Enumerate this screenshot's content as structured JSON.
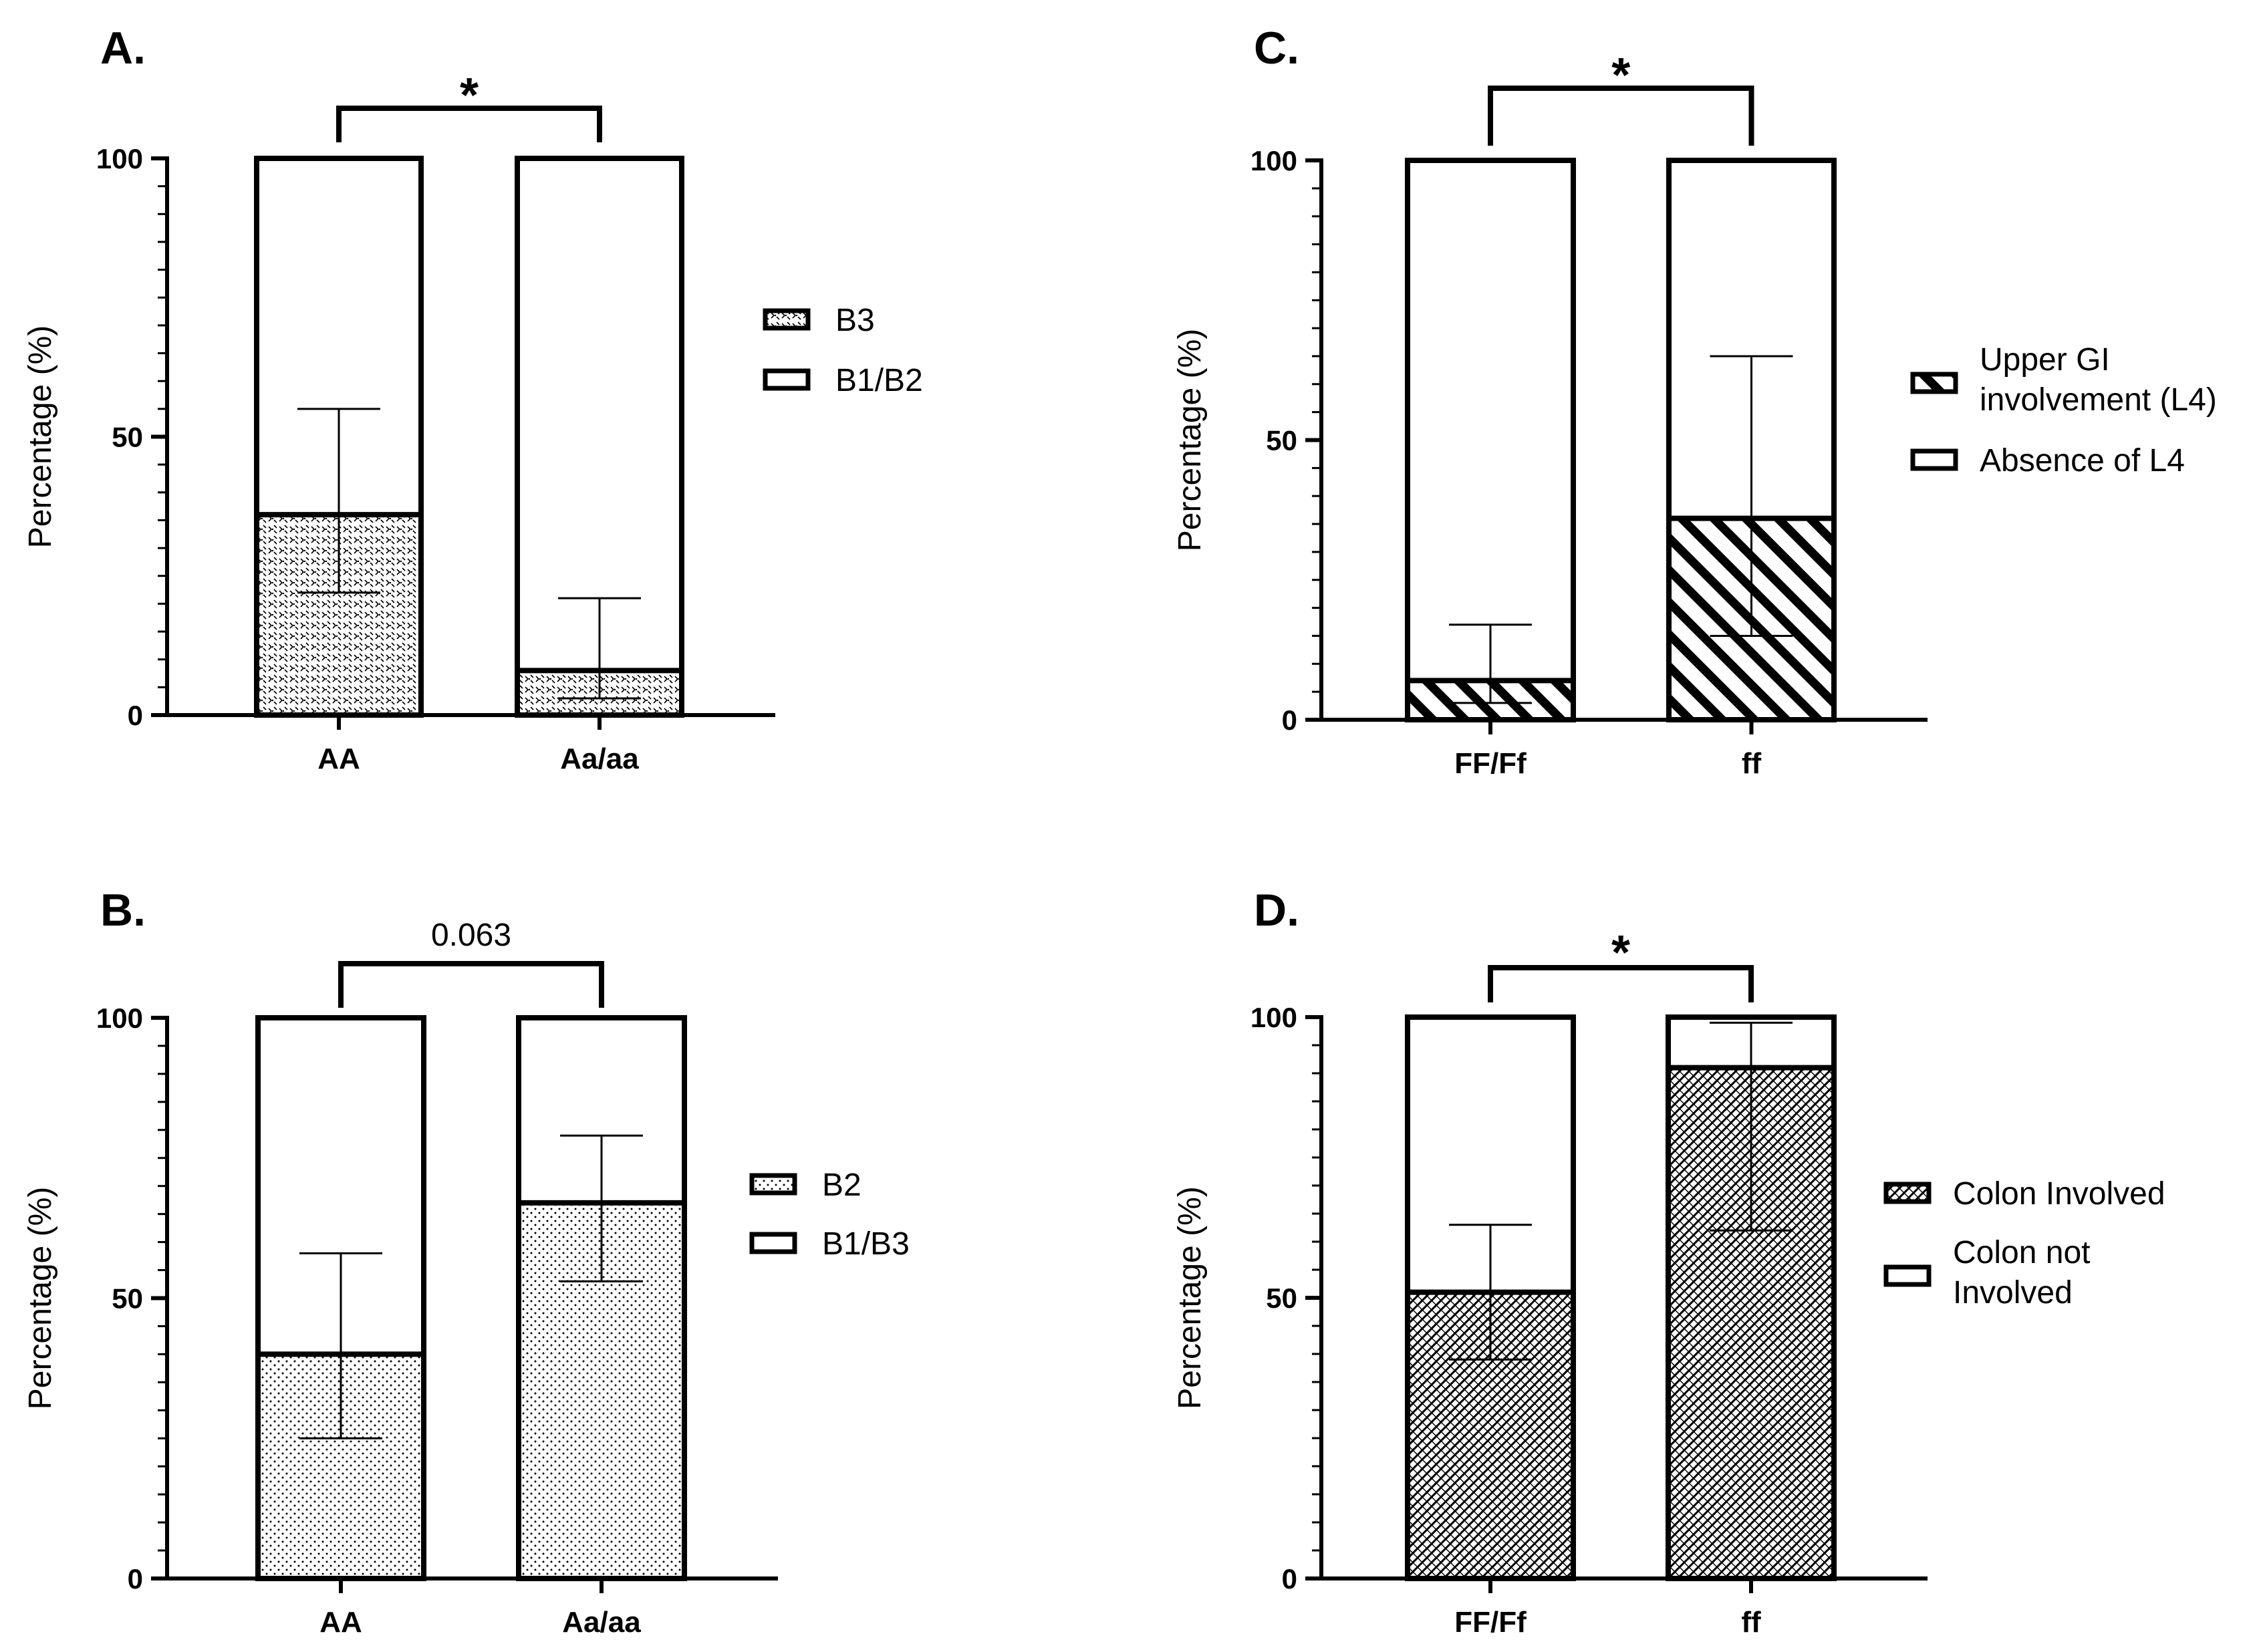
{
  "colors": {
    "ink": "#000000",
    "background": "#ffffff"
  },
  "chart_data": [
    {
      "panel": "A.",
      "type": "bar",
      "stacked": true,
      "pattern": "crosshatch-dots",
      "categories": [
        "AA",
        "Aa/aa"
      ],
      "series": [
        {
          "name": "B3",
          "values": [
            36,
            8
          ],
          "error_low": [
            22,
            3
          ],
          "error_high": [
            55,
            21
          ]
        },
        {
          "name": "B1/B2",
          "values": [
            64,
            92
          ]
        }
      ],
      "ylabel": "Percentage (%)",
      "ylim": [
        0,
        100
      ],
      "yticks": [
        "0",
        "50",
        "100"
      ],
      "significance": "*",
      "legend_position": "right"
    },
    {
      "panel": "B.",
      "type": "bar",
      "stacked": true,
      "pattern": "dots",
      "categories": [
        "AA",
        "Aa/aa"
      ],
      "series": [
        {
          "name": "B2",
          "values": [
            40,
            67
          ],
          "error_low": [
            25,
            53
          ],
          "error_high": [
            58,
            79
          ]
        },
        {
          "name": "B1/B3",
          "values": [
            60,
            33
          ]
        }
      ],
      "ylabel": "Percentage (%)",
      "ylim": [
        0,
        100
      ],
      "yticks": [
        "0",
        "50",
        "100"
      ],
      "significance": "0.063",
      "legend_position": "right"
    },
    {
      "panel": "C.",
      "type": "bar",
      "stacked": true,
      "pattern": "diagonal-stripes",
      "categories": [
        "FF/Ff",
        "ff"
      ],
      "series": [
        {
          "name": "Upper GI involvement (L4)",
          "legend_lines": [
            "Upper GI",
            "involvement (L4)"
          ],
          "values": [
            7,
            36
          ],
          "error_low": [
            3,
            15
          ],
          "error_high": [
            17,
            65
          ]
        },
        {
          "name": "Absence of L4",
          "legend_lines": [
            "Absence of L4"
          ],
          "values": [
            93,
            64
          ]
        }
      ],
      "ylabel": "Percentage (%)",
      "ylim": [
        0,
        100
      ],
      "yticks": [
        "0",
        "50",
        "100"
      ],
      "significance": "*",
      "legend_position": "right"
    },
    {
      "panel": "D.",
      "type": "bar",
      "stacked": true,
      "pattern": "crosshatch",
      "categories": [
        "FF/Ff",
        "ff"
      ],
      "series": [
        {
          "name": "Colon Involved",
          "legend_lines": [
            "Colon Involved"
          ],
          "values": [
            51,
            91
          ],
          "error_low": [
            39,
            62
          ],
          "error_high": [
            63,
            99
          ]
        },
        {
          "name": "Colon not Involved",
          "legend_lines": [
            "Colon not",
            "Involved"
          ],
          "values": [
            49,
            9
          ]
        }
      ],
      "ylabel": "Percentage (%)",
      "ylim": [
        0,
        100
      ],
      "yticks": [
        "0",
        "50",
        "100"
      ],
      "significance": "*",
      "legend_position": "right"
    }
  ]
}
